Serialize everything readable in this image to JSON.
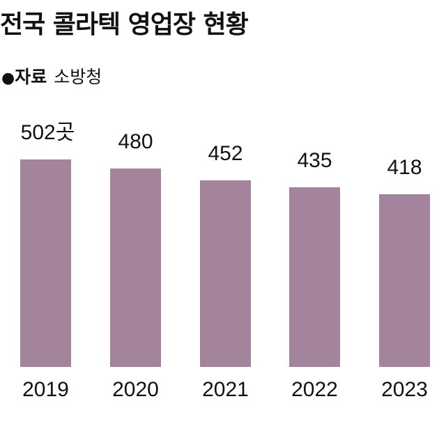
{
  "header": {
    "title": "전국 콜라텍 영업장 현황",
    "source_bullet": "●",
    "source_label": "자료",
    "source_value": "소방청"
  },
  "colors": {
    "bar": "#a3849c",
    "text": "#111111",
    "background": "#ffffff"
  },
  "labels": [
    "502곳",
    "480",
    "452",
    "435",
    "418"
  ],
  "chart_data": {
    "type": "bar",
    "title": "전국 콜라텍 영업장 현황",
    "subtitle": "자료 소방청",
    "categories": [
      "2019",
      "2020",
      "2021",
      "2022",
      "2023"
    ],
    "values": [
      502,
      480,
      452,
      435,
      418
    ],
    "unit": "곳",
    "xlabel": "",
    "ylabel": "",
    "grid": false,
    "legend": null,
    "axis_visible": false
  }
}
